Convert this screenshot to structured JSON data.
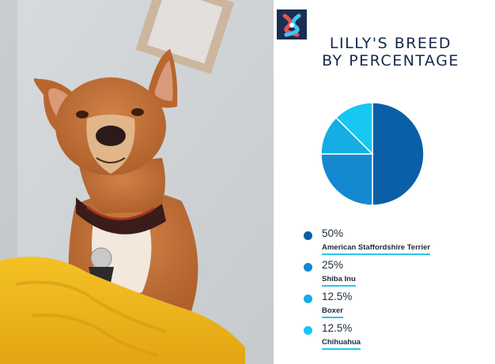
{
  "title": {
    "line1": "LILLY'S BREED",
    "line2": "BY PERCENTAGE"
  },
  "icons": {
    "logo": "brand-logo-icon",
    "photo": "dog-photo"
  },
  "chart_data": {
    "type": "pie",
    "title": "LILLY'S BREED BY PERCENTAGE",
    "categories": [
      "American Staffordshire Terrier",
      "Shiba Inu",
      "Boxer",
      "Chihuahua"
    ],
    "values": [
      50,
      25,
      12.5,
      12.5
    ],
    "labels": [
      "50%",
      "25%",
      "12.5%",
      "12.5%"
    ],
    "colors": [
      "#0a5fa6",
      "#1489cf",
      "#12aee4",
      "#16c7f1"
    ],
    "legend": "bottom"
  },
  "colors": {
    "title": "#15284a",
    "underline": "#2bc4ee",
    "logo_bg": "#1b2d52"
  }
}
